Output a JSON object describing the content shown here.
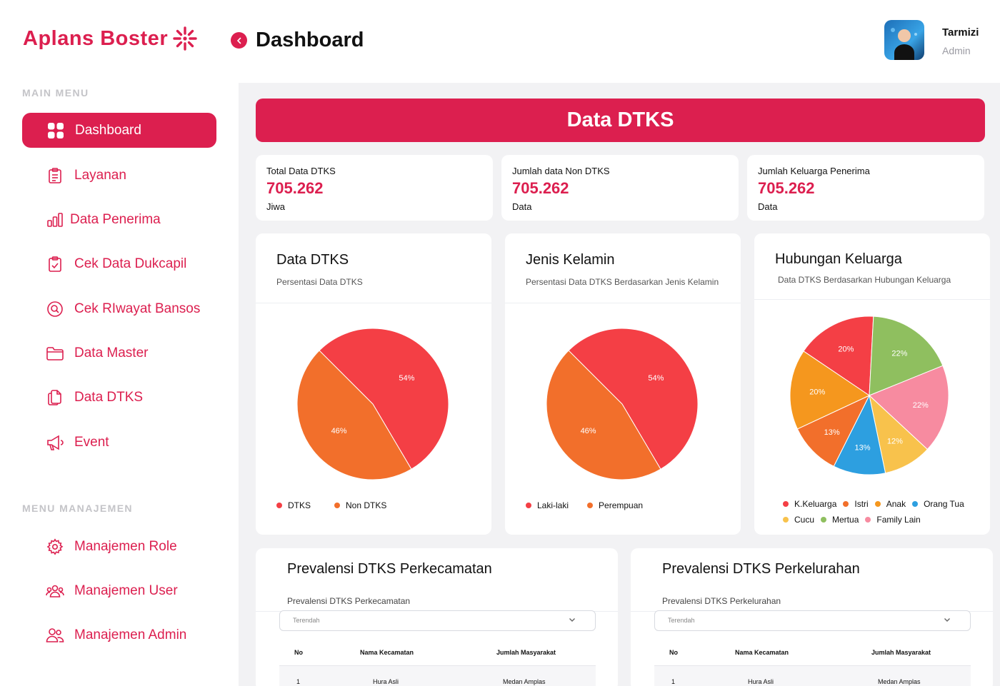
{
  "brand": {
    "name": "Aplans Boster",
    "accent": "#dc1f4f"
  },
  "header": {
    "title": "Dashboard",
    "user_name": "Tarmizi",
    "user_role": "Admin"
  },
  "sidebar": {
    "main_heading": "MAIN MENU",
    "main_items": [
      {
        "label": "Dashboard",
        "icon": "grid-icon",
        "active": true
      },
      {
        "label": "Layanan",
        "icon": "clipboard-list-icon"
      },
      {
        "label": "Data Penerima",
        "icon": "bar-chart-icon"
      },
      {
        "label": "Cek Data Dukcapil",
        "icon": "clipboard-check-icon"
      },
      {
        "label": "Cek RIwayat Bansos",
        "icon": "search-circle-icon"
      },
      {
        "label": "Data Master",
        "icon": "folder-icon"
      },
      {
        "label": "Data DTKS",
        "icon": "documents-icon"
      },
      {
        "label": "Event",
        "icon": "megaphone-icon"
      }
    ],
    "manage_heading": "MENU MANAJEMEN",
    "manage_items": [
      {
        "label": "Manajemen Role",
        "icon": "gear-icon"
      },
      {
        "label": "Manajemen User",
        "icon": "users-group-icon"
      },
      {
        "label": "Manajemen Admin",
        "icon": "users-icon"
      }
    ]
  },
  "banner": {
    "title": "Data DTKS"
  },
  "stats": [
    {
      "label": "Total Data DTKS",
      "value": "705.262",
      "unit": "Jiwa"
    },
    {
      "label": "Jumlah data Non DTKS",
      "value": "705.262",
      "unit": "Data"
    },
    {
      "label": "Jumlah Keluarga Penerima",
      "value": "705.262",
      "unit": "Data"
    }
  ],
  "charts": {
    "dtks": {
      "title": "Data DTKS",
      "subtitle": "Persentasi Data DTKS"
    },
    "gender": {
      "title": "Jenis Kelamin",
      "subtitle": "Persentasi Data DTKS Berdasarkan Jenis Kelamin"
    },
    "family": {
      "title": "Hubungan Keluarga",
      "subtitle": "Data DTKS Berdasarkan Hubungan Keluarga"
    }
  },
  "chart_data": [
    {
      "type": "pie",
      "title": "Data DTKS",
      "categories": [
        "DTKS",
        "Non DTKS"
      ],
      "values": [
        54,
        46
      ],
      "labels": [
        "54%",
        "46%"
      ],
      "colors": [
        "#f43f45",
        "#f26f2b"
      ],
      "legend": "bottom"
    },
    {
      "type": "pie",
      "title": "Jenis Kelamin",
      "categories": [
        "Laki-laki",
        "Perempuan"
      ],
      "values": [
        54,
        46
      ],
      "labels": [
        "54%",
        "46%"
      ],
      "colors": [
        "#f43f45",
        "#f26f2b"
      ],
      "legend": "bottom"
    },
    {
      "type": "pie",
      "title": "Hubungan Keluarga",
      "categories": [
        "K.Keluarga",
        "Istri",
        "Anak",
        "Orang Tua",
        "Cucu",
        "Mertua",
        "Family Lain"
      ],
      "slices": [
        {
          "label": "20%",
          "value": 20,
          "color": "#f43f45"
        },
        {
          "label": "22%",
          "value": 22,
          "color": "#8fbf5f"
        },
        {
          "label": "22%",
          "value": 22,
          "color": "#f78ba0"
        },
        {
          "label": "12%",
          "value": 12,
          "color": "#f8c24c"
        },
        {
          "label": "13%",
          "value": 13,
          "color": "#2d9fe0"
        },
        {
          "label": "13%",
          "value": 13,
          "color": "#f26f2b"
        },
        {
          "label": "20%",
          "value": 20,
          "color": "#f5971e"
        }
      ],
      "legend_colors": [
        "#f43f45",
        "#f26f2b",
        "#f5971e",
        "#2d9fe0",
        "#f8c24c",
        "#8fbf5f",
        "#f78ba0"
      ],
      "legend": "bottom"
    }
  ],
  "prevalensi": [
    {
      "title": "Prevalensi DTKS Perkecamatan",
      "subtitle": "Prevalensi DTKS Perkecamatan",
      "select_value": "Terendah",
      "columns": [
        "No",
        "Nama Kecamatan",
        "Jumlah Masyarakat"
      ],
      "rows": [
        [
          "1",
          "Hura Asli",
          "Medan Amplas"
        ]
      ]
    },
    {
      "title": "Prevalensi DTKS Perkelurahan",
      "subtitle": "Prevalensi DTKS Perkelurahan",
      "select_value": "Terendah",
      "columns": [
        "No",
        "Nama Kecamatan",
        "Jumlah Masyarakat"
      ],
      "rows": [
        [
          "1",
          "Hura Asli",
          "Medan Amplas"
        ]
      ]
    }
  ]
}
